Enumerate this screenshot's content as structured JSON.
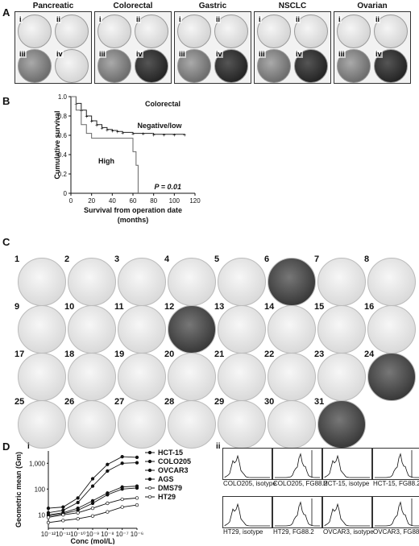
{
  "panels": {
    "a": "A",
    "b": "B",
    "c": "C",
    "d": "D",
    "d_i": "i",
    "d_ii": "ii"
  },
  "panelA": {
    "tissues": [
      {
        "name": "Pancreatic",
        "labels": [
          "i",
          "ii",
          "iii",
          "iv"
        ]
      },
      {
        "name": "Colorectal",
        "labels": [
          "i",
          "ii",
          "iii",
          "iv"
        ]
      },
      {
        "name": "Gastric",
        "labels": [
          "i",
          "ii",
          "iii",
          "iv"
        ]
      },
      {
        "name": "NSCLC",
        "labels": [
          "i",
          "ii",
          "iii",
          "iv"
        ]
      },
      {
        "name": "Ovarian",
        "labels": [
          "i",
          "ii",
          "iii",
          "iv"
        ]
      }
    ]
  },
  "panelC": {
    "numbers": [
      "1",
      "2",
      "3",
      "4",
      "5",
      "6",
      "7",
      "8",
      "9",
      "10",
      "11",
      "12",
      "13",
      "14",
      "15",
      "16",
      "17",
      "18",
      "19",
      "20",
      "21",
      "22",
      "23",
      "24",
      "25",
      "26",
      "27",
      "28",
      "29",
      "30",
      "31"
    ]
  },
  "panelD_ii": {
    "captions": [
      "COLO205, isotype",
      "COLO205, FG88.2",
      "HCT-15, isotype",
      "HCT-15, FG88.2",
      "HT29, isotype",
      "HT29, FG88.2",
      "OVCAR3, isotype",
      "OVCAR3, FG88.2"
    ]
  },
  "chart_data": [
    {
      "type": "line",
      "title": "Colorectal",
      "xlabel": "Survival from operation date (months)",
      "ylabel": "Cumulative survival",
      "xlim": [
        0,
        120
      ],
      "ylim": [
        0,
        1.0
      ],
      "xticks": [
        "0",
        "20",
        "40",
        "60",
        "80",
        "100",
        "120"
      ],
      "yticks": [
        "0",
        "0.2",
        "0.4",
        "0.6",
        "0.8",
        "1.0"
      ],
      "annotation": "P = 0.01",
      "series": [
        {
          "name": "Negative/low",
          "x": [
            0,
            5,
            10,
            15,
            20,
            25,
            30,
            35,
            40,
            45,
            50,
            60,
            70,
            80,
            90,
            100,
            110
          ],
          "y": [
            1.0,
            0.93,
            0.86,
            0.8,
            0.75,
            0.71,
            0.68,
            0.66,
            0.65,
            0.64,
            0.63,
            0.62,
            0.62,
            0.61,
            0.61,
            0.61,
            0.61
          ]
        },
        {
          "name": "High",
          "x": [
            0,
            5,
            10,
            15,
            20,
            25,
            30,
            35,
            40,
            50,
            60,
            63,
            65
          ],
          "y": [
            1.0,
            0.86,
            0.71,
            0.62,
            0.57,
            0.57,
            0.57,
            0.57,
            0.57,
            0.57,
            0.43,
            0.29,
            0.0
          ]
        }
      ]
    },
    {
      "type": "line",
      "xlabel": "Conc (mol/L)",
      "ylabel": "Geometric mean (Gm)",
      "xticks": [
        "10⁻¹²",
        "10⁻¹¹",
        "10⁻¹⁰",
        "10⁻⁹",
        "10⁻⁸",
        "10⁻⁷",
        "10⁻⁶"
      ],
      "yticks": [
        "10",
        "100",
        "1,000"
      ],
      "x_scale": "log",
      "y_scale": "log",
      "xlim": [
        1e-12,
        1e-06
      ],
      "ylim": [
        3,
        3000
      ],
      "legend": "right",
      "series": [
        {
          "name": "HCT-15",
          "x": [
            1e-12,
            1e-11,
            1e-10,
            1e-09,
            1e-08,
            1e-07,
            1e-06
          ],
          "y": [
            18,
            20,
            45,
            250,
            900,
            1800,
            1700
          ]
        },
        {
          "name": "COLO205",
          "x": [
            1e-12,
            1e-11,
            1e-10,
            1e-09,
            1e-08,
            1e-07,
            1e-06
          ],
          "y": [
            12,
            15,
            30,
            130,
            500,
            1000,
            1050
          ]
        },
        {
          "name": "OVCAR3",
          "x": [
            1e-12,
            1e-11,
            1e-10,
            1e-09,
            1e-08,
            1e-07,
            1e-06
          ],
          "y": [
            10,
            12,
            18,
            35,
            70,
            120,
            130
          ]
        },
        {
          "name": "AGS",
          "x": [
            1e-12,
            1e-11,
            1e-10,
            1e-09,
            1e-08,
            1e-07,
            1e-06
          ],
          "y": [
            9,
            11,
            15,
            28,
            60,
            100,
            110
          ]
        },
        {
          "name": "DMS79",
          "x": [
            1e-12,
            1e-11,
            1e-10,
            1e-09,
            1e-08,
            1e-07,
            1e-06
          ],
          "y": [
            8,
            10,
            12,
            18,
            28,
            40,
            45
          ]
        },
        {
          "name": "HT29",
          "x": [
            1e-12,
            1e-11,
            1e-10,
            1e-09,
            1e-08,
            1e-07,
            1e-06
          ],
          "y": [
            5,
            6,
            7,
            9,
            13,
            20,
            24
          ]
        }
      ]
    }
  ]
}
